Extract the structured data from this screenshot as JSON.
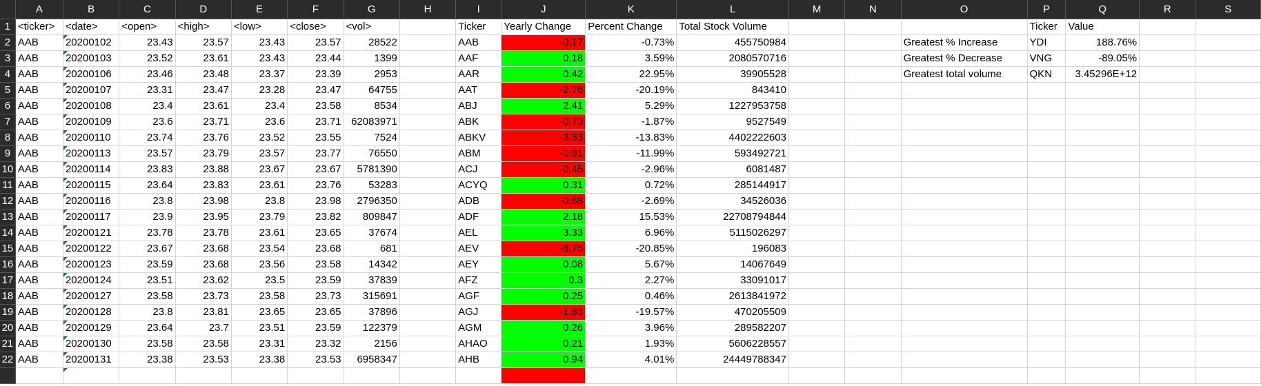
{
  "columns": [
    "A",
    "B",
    "C",
    "D",
    "E",
    "F",
    "G",
    "H",
    "I",
    "J",
    "K",
    "L",
    "M",
    "N",
    "O",
    "P",
    "Q",
    "R",
    "S"
  ],
  "headers": {
    "ticker": "<ticker>",
    "date": "<date>",
    "open": "<open>",
    "high": "<high>",
    "low": "<low>",
    "close": "<close>",
    "vol": "<vol>",
    "ticker2": "Ticker",
    "yearly_change": "Yearly Change",
    "percent_change": "Percent Change",
    "total_volume": "Total Stock Volume",
    "summary_ticker": "Ticker",
    "summary_value": "Value"
  },
  "raw_rows": [
    [
      "AAB",
      "20200102",
      "23.43",
      "23.57",
      "23.43",
      "23.57",
      "28522"
    ],
    [
      "AAB",
      "20200103",
      "23.52",
      "23.61",
      "23.43",
      "23.44",
      "1399"
    ],
    [
      "AAB",
      "20200106",
      "23.46",
      "23.48",
      "23.37",
      "23.39",
      "2953"
    ],
    [
      "AAB",
      "20200107",
      "23.31",
      "23.47",
      "23.28",
      "23.47",
      "64755"
    ],
    [
      "AAB",
      "20200108",
      "23.4",
      "23.61",
      "23.4",
      "23.58",
      "8534"
    ],
    [
      "AAB",
      "20200109",
      "23.6",
      "23.71",
      "23.6",
      "23.71",
      "62083971"
    ],
    [
      "AAB",
      "20200110",
      "23.74",
      "23.76",
      "23.52",
      "23.55",
      "7524"
    ],
    [
      "AAB",
      "20200113",
      "23.57",
      "23.79",
      "23.57",
      "23.77",
      "76550"
    ],
    [
      "AAB",
      "20200114",
      "23.83",
      "23.88",
      "23.67",
      "23.67",
      "5781390"
    ],
    [
      "AAB",
      "20200115",
      "23.64",
      "23.83",
      "23.61",
      "23.76",
      "53283"
    ],
    [
      "AAB",
      "20200116",
      "23.8",
      "23.98",
      "23.8",
      "23.98",
      "2796350"
    ],
    [
      "AAB",
      "20200117",
      "23.9",
      "23.95",
      "23.79",
      "23.82",
      "809847"
    ],
    [
      "AAB",
      "20200121",
      "23.78",
      "23.78",
      "23.61",
      "23.65",
      "37674"
    ],
    [
      "AAB",
      "20200122",
      "23.67",
      "23.68",
      "23.54",
      "23.68",
      "681"
    ],
    [
      "AAB",
      "20200123",
      "23.59",
      "23.68",
      "23.56",
      "23.58",
      "14342"
    ],
    [
      "AAB",
      "20200124",
      "23.51",
      "23.62",
      "23.5",
      "23.59",
      "37839"
    ],
    [
      "AAB",
      "20200127",
      "23.58",
      "23.73",
      "23.58",
      "23.73",
      "315691"
    ],
    [
      "AAB",
      "20200128",
      "23.8",
      "23.81",
      "23.65",
      "23.65",
      "37896"
    ],
    [
      "AAB",
      "20200129",
      "23.64",
      "23.7",
      "23.51",
      "23.59",
      "122379"
    ],
    [
      "AAB",
      "20200130",
      "23.58",
      "23.58",
      "23.31",
      "23.32",
      "2156"
    ],
    [
      "AAB",
      "20200131",
      "23.38",
      "23.53",
      "23.38",
      "23.53",
      "6958347"
    ]
  ],
  "summary_rows": [
    {
      "ticker": "AAB",
      "yearly_change": "-0.17",
      "percent_change": "-0.73%",
      "total_volume": "455750984"
    },
    {
      "ticker": "AAF",
      "yearly_change": "0.18",
      "percent_change": "3.59%",
      "total_volume": "2080570716"
    },
    {
      "ticker": "AAR",
      "yearly_change": "0.42",
      "percent_change": "22.95%",
      "total_volume": "39905528"
    },
    {
      "ticker": "AAT",
      "yearly_change": "-2.76",
      "percent_change": "-20.19%",
      "total_volume": "843410"
    },
    {
      "ticker": "ABJ",
      "yearly_change": "2.41",
      "percent_change": "5.29%",
      "total_volume": "1227953758"
    },
    {
      "ticker": "ABK",
      "yearly_change": "-0.73",
      "percent_change": "-1.87%",
      "total_volume": "9527549"
    },
    {
      "ticker": "ABKV",
      "yearly_change": "-3.53",
      "percent_change": "-13.83%",
      "total_volume": "4402222603"
    },
    {
      "ticker": "ABM",
      "yearly_change": "-0.91",
      "percent_change": "-11.99%",
      "total_volume": "593492721"
    },
    {
      "ticker": "ACJ",
      "yearly_change": "-0.45",
      "percent_change": "-2.96%",
      "total_volume": "6081487"
    },
    {
      "ticker": "ACYQ",
      "yearly_change": "0.31",
      "percent_change": "0.72%",
      "total_volume": "285144917"
    },
    {
      "ticker": "ADB",
      "yearly_change": "-0.68",
      "percent_change": "-2.69%",
      "total_volume": "34526036"
    },
    {
      "ticker": "ADF",
      "yearly_change": "2.18",
      "percent_change": "15.53%",
      "total_volume": "22708794844"
    },
    {
      "ticker": "AEL",
      "yearly_change": "3.33",
      "percent_change": "6.96%",
      "total_volume": "5115026297"
    },
    {
      "ticker": "AEV",
      "yearly_change": "-8.75",
      "percent_change": "-20.85%",
      "total_volume": "196083"
    },
    {
      "ticker": "AEY",
      "yearly_change": "0.08",
      "percent_change": "5.67%",
      "total_volume": "14067649"
    },
    {
      "ticker": "AFZ",
      "yearly_change": "0.3",
      "percent_change": "2.27%",
      "total_volume": "33091017"
    },
    {
      "ticker": "AGF",
      "yearly_change": "0.25",
      "percent_change": "0.46%",
      "total_volume": "2613841972"
    },
    {
      "ticker": "AGJ",
      "yearly_change": "-1.83",
      "percent_change": "-19.57%",
      "total_volume": "470205509"
    },
    {
      "ticker": "AGM",
      "yearly_change": "0.26",
      "percent_change": "3.96%",
      "total_volume": "289582207"
    },
    {
      "ticker": "AHAO",
      "yearly_change": "0.21",
      "percent_change": "1.93%",
      "total_volume": "5606228557"
    },
    {
      "ticker": "AHB",
      "yearly_change": "0.94",
      "percent_change": "4.01%",
      "total_volume": "24449788347"
    }
  ],
  "greatest": [
    {
      "label": "Greatest % Increase",
      "ticker": "YDI",
      "value": "188.76%"
    },
    {
      "label": "Greatest % Decrease",
      "ticker": "VNG",
      "value": "-89.05%"
    },
    {
      "label": "Greatest total volume",
      "ticker": "QKN",
      "value": "3.45296E+12"
    }
  ],
  "colors": {
    "positive_fill": "#00ff00",
    "negative_fill": "#ff0000",
    "header_bg": "#2b2b2b",
    "gridline": "#d4d4d4"
  }
}
